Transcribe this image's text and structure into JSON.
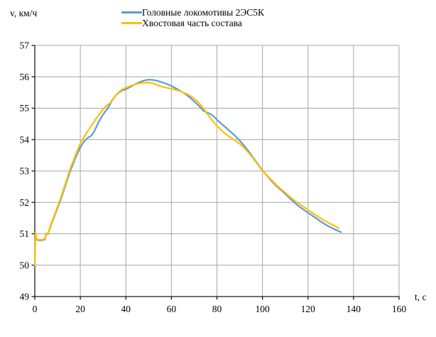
{
  "chart_data": {
    "type": "line",
    "title": "",
    "xlabel": "t, с",
    "ylabel": "v, км/ч",
    "xlim": [
      0,
      160
    ],
    "ylim": [
      49,
      57
    ],
    "x_ticks": [
      0,
      20,
      40,
      60,
      80,
      100,
      120,
      140,
      160
    ],
    "y_ticks": [
      49,
      50,
      51,
      52,
      53,
      54,
      55,
      56,
      57
    ],
    "grid": true,
    "legend_position": "top-center",
    "colors": {
      "gridline": "#A6A6A6",
      "axis": "#1a1a1a",
      "text": "#000000",
      "background": "#ffffff"
    },
    "series": [
      {
        "name": "Головные локомотивы 2ЭС5К",
        "color": "#5B9BD5",
        "points": [
          [
            0,
            50.0
          ],
          [
            0.3,
            51.02
          ],
          [
            0.7,
            50.83
          ],
          [
            1.5,
            50.79
          ],
          [
            3,
            50.79
          ],
          [
            4.6,
            50.82
          ],
          [
            4.9,
            51.0
          ],
          [
            5.8,
            50.98
          ],
          [
            6.2,
            51.08
          ],
          [
            7,
            51.25
          ],
          [
            8,
            51.45
          ],
          [
            9,
            51.63
          ],
          [
            10,
            51.82
          ],
          [
            11,
            52.02
          ],
          [
            12,
            52.22
          ],
          [
            13,
            52.44
          ],
          [
            14,
            52.66
          ],
          [
            15,
            52.88
          ],
          [
            16,
            53.08
          ],
          [
            17,
            53.25
          ],
          [
            18,
            53.44
          ],
          [
            19,
            53.6
          ],
          [
            20,
            53.75
          ],
          [
            21,
            53.87
          ],
          [
            22,
            53.97
          ],
          [
            23,
            54.04
          ],
          [
            24,
            54.09
          ],
          [
            25,
            54.14
          ],
          [
            26,
            54.25
          ],
          [
            27,
            54.4
          ],
          [
            28,
            54.55
          ],
          [
            29,
            54.68
          ],
          [
            30,
            54.8
          ],
          [
            31,
            54.9
          ],
          [
            32,
            55.0
          ],
          [
            33,
            55.12
          ],
          [
            34,
            55.25
          ],
          [
            35,
            55.35
          ],
          [
            36,
            55.44
          ],
          [
            37,
            55.5
          ],
          [
            38,
            55.55
          ],
          [
            39,
            55.58
          ],
          [
            40,
            55.6
          ],
          [
            42,
            55.68
          ],
          [
            44,
            55.76
          ],
          [
            46,
            55.83
          ],
          [
            48,
            55.88
          ],
          [
            50,
            55.91
          ],
          [
            52,
            55.9
          ],
          [
            54,
            55.87
          ],
          [
            56,
            55.82
          ],
          [
            58,
            55.77
          ],
          [
            60,
            55.71
          ],
          [
            62,
            55.63
          ],
          [
            64,
            55.55
          ],
          [
            66,
            55.46
          ],
          [
            68,
            55.35
          ],
          [
            70,
            55.22
          ],
          [
            72,
            55.08
          ],
          [
            74,
            54.92
          ],
          [
            75,
            54.88
          ],
          [
            76,
            54.85
          ],
          [
            77,
            54.82
          ],
          [
            78,
            54.77
          ],
          [
            79,
            54.71
          ],
          [
            80,
            54.63
          ],
          [
            82,
            54.5
          ],
          [
            84,
            54.38
          ],
          [
            86,
            54.25
          ],
          [
            88,
            54.12
          ],
          [
            90,
            53.97
          ],
          [
            92,
            53.8
          ],
          [
            94,
            53.62
          ],
          [
            96,
            53.42
          ],
          [
            98,
            53.22
          ],
          [
            100,
            53.02
          ],
          [
            102,
            52.85
          ],
          [
            104,
            52.68
          ],
          [
            106,
            52.53
          ],
          [
            108,
            52.4
          ],
          [
            110,
            52.27
          ],
          [
            112,
            52.13
          ],
          [
            114,
            52.0
          ],
          [
            116,
            51.88
          ],
          [
            118,
            51.77
          ],
          [
            120,
            51.67
          ],
          [
            122,
            51.57
          ],
          [
            124,
            51.47
          ],
          [
            126,
            51.37
          ],
          [
            128,
            51.28
          ],
          [
            130,
            51.2
          ],
          [
            132,
            51.13
          ],
          [
            134.5,
            51.05
          ]
        ]
      },
      {
        "name": "Хвостовая часть состава",
        "color": "#FFC000",
        "points": [
          [
            0,
            50.0
          ],
          [
            0.3,
            51.05
          ],
          [
            0.7,
            50.85
          ],
          [
            1.5,
            50.81
          ],
          [
            3,
            50.81
          ],
          [
            4.6,
            50.84
          ],
          [
            4.9,
            51.02
          ],
          [
            5.8,
            51.0
          ],
          [
            6.2,
            51.1
          ],
          [
            7,
            51.28
          ],
          [
            8,
            51.48
          ],
          [
            9,
            51.67
          ],
          [
            10,
            51.86
          ],
          [
            11,
            52.07
          ],
          [
            12,
            52.28
          ],
          [
            13,
            52.5
          ],
          [
            14,
            52.72
          ],
          [
            15,
            52.95
          ],
          [
            16,
            53.16
          ],
          [
            17,
            53.33
          ],
          [
            18,
            53.52
          ],
          [
            19,
            53.7
          ],
          [
            20,
            53.88
          ],
          [
            21,
            54.0
          ],
          [
            22,
            54.12
          ],
          [
            23,
            54.24
          ],
          [
            24,
            54.35
          ],
          [
            25,
            54.46
          ],
          [
            26,
            54.57
          ],
          [
            27,
            54.67
          ],
          [
            28,
            54.77
          ],
          [
            29,
            54.87
          ],
          [
            30,
            54.97
          ],
          [
            31,
            55.05
          ],
          [
            32,
            55.11
          ],
          [
            33,
            55.16
          ],
          [
            34,
            55.26
          ],
          [
            35,
            55.36
          ],
          [
            36,
            55.45
          ],
          [
            37,
            55.52
          ],
          [
            38,
            55.58
          ],
          [
            39,
            55.62
          ],
          [
            40,
            55.65
          ],
          [
            42,
            55.71
          ],
          [
            44,
            55.76
          ],
          [
            46,
            55.79
          ],
          [
            48,
            55.81
          ],
          [
            50,
            55.82
          ],
          [
            52,
            55.79
          ],
          [
            54,
            55.73
          ],
          [
            56,
            55.68
          ],
          [
            58,
            55.65
          ],
          [
            60,
            55.62
          ],
          [
            62,
            55.58
          ],
          [
            64,
            55.54
          ],
          [
            66,
            55.48
          ],
          [
            68,
            55.41
          ],
          [
            70,
            55.31
          ],
          [
            72,
            55.17
          ],
          [
            74,
            55.0
          ],
          [
            76,
            54.8
          ],
          [
            78,
            54.6
          ],
          [
            80,
            54.44
          ],
          [
            82,
            54.29
          ],
          [
            84,
            54.17
          ],
          [
            86,
            54.07
          ],
          [
            88,
            53.97
          ],
          [
            90,
            53.87
          ],
          [
            92,
            53.73
          ],
          [
            94,
            53.57
          ],
          [
            96,
            53.4
          ],
          [
            98,
            53.2
          ],
          [
            100,
            53.0
          ],
          [
            102,
            52.86
          ],
          [
            104,
            52.71
          ],
          [
            106,
            52.56
          ],
          [
            108,
            52.43
          ],
          [
            110,
            52.31
          ],
          [
            112,
            52.18
          ],
          [
            114,
            52.06
          ],
          [
            116,
            51.96
          ],
          [
            118,
            51.86
          ],
          [
            120,
            51.76
          ],
          [
            122,
            51.66
          ],
          [
            124,
            51.56
          ],
          [
            126,
            51.47
          ],
          [
            128,
            51.39
          ],
          [
            130,
            51.31
          ],
          [
            132,
            51.24
          ],
          [
            133.5,
            51.17
          ]
        ]
      }
    ]
  }
}
